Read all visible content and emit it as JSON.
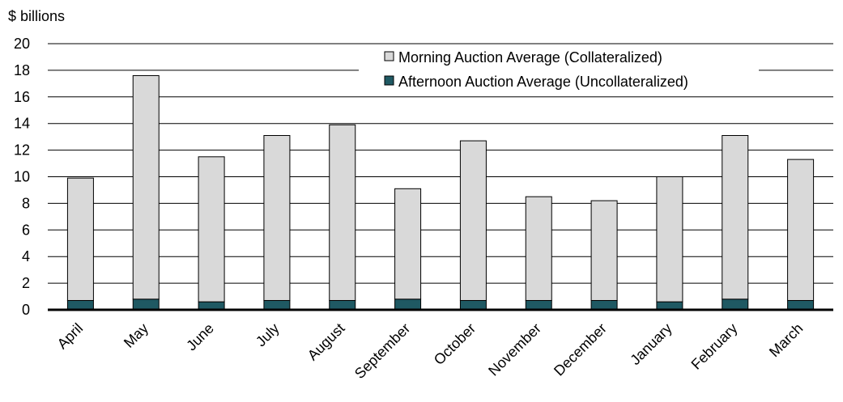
{
  "chart_data": {
    "type": "bar",
    "stacked": true,
    "unit_label": "$ billions",
    "categories": [
      "April",
      "May",
      "June",
      "July",
      "August",
      "September",
      "October",
      "November",
      "December",
      "January",
      "February",
      "March"
    ],
    "series": [
      {
        "name": "Afternoon Auction Average (Uncollateralized)",
        "color": "#1f5963",
        "values": [
          0.7,
          0.8,
          0.6,
          0.7,
          0.7,
          0.8,
          0.7,
          0.7,
          0.7,
          0.6,
          0.8,
          0.7
        ]
      },
      {
        "name": "Morning Auction Average (Collateralized)",
        "color": "#d9d9d9",
        "values": [
          9.2,
          16.8,
          10.9,
          12.4,
          13.2,
          8.3,
          12.0,
          7.8,
          7.5,
          9.4,
          12.3,
          10.6
        ]
      }
    ],
    "totals": [
      9.9,
      17.6,
      11.5,
      13.1,
      13.9,
      9.1,
      12.7,
      8.5,
      8.2,
      10.0,
      13.1,
      11.3
    ],
    "ylim": [
      0,
      20
    ],
    "yticks": [
      0,
      2,
      4,
      6,
      8,
      10,
      12,
      14,
      16,
      18,
      20
    ],
    "grid": true,
    "legend_position": "top-right"
  }
}
